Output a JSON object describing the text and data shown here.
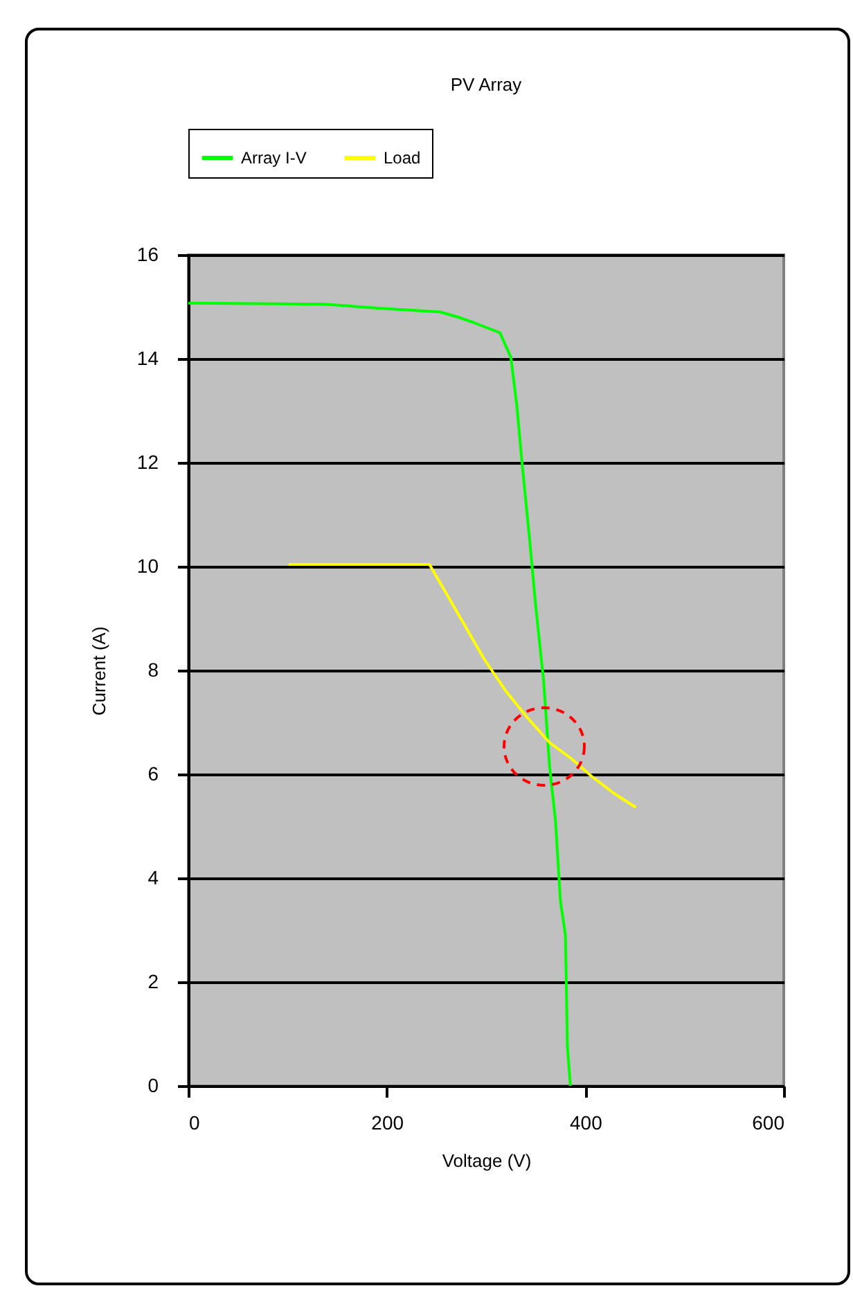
{
  "chart_data": {
    "type": "line",
    "title": "PV Array",
    "xlabel": "Voltage (V)",
    "ylabel": "Current (A)",
    "xlim": [
      0,
      600
    ],
    "xticks": [
      0,
      200,
      400,
      600
    ],
    "ylim": [
      0,
      16
    ],
    "yticks": [
      0,
      2,
      4,
      6,
      8,
      10,
      12,
      14,
      16
    ],
    "grid": "y",
    "legend": "top",
    "marker": "none",
    "line_style": "solid",
    "series": [
      {
        "name": "Array I-V",
        "color": "#00ff00",
        "x": [
          0,
          137,
          194,
          254,
          272,
          287,
          314,
          325,
          331,
          336,
          344,
          350,
          358,
          364,
          370,
          375,
          380,
          382,
          385
        ],
        "values": [
          15.07,
          15.05,
          14.97,
          14.9,
          14.8,
          14.7,
          14.5,
          14.03,
          13.1,
          12.05,
          10.5,
          9.25,
          7.8,
          6.15,
          5.1,
          3.55,
          2.9,
          0.75,
          0
        ]
      },
      {
        "name": "Load",
        "color": "#ffff00",
        "x": [
          101,
          243,
          276,
          298,
          320,
          342,
          364,
          386,
          407,
          429,
          451
        ],
        "values": [
          10.04,
          10.04,
          8.95,
          8.22,
          7.6,
          7.08,
          6.61,
          6.3,
          5.95,
          5.63,
          5.36
        ]
      }
    ]
  }
}
